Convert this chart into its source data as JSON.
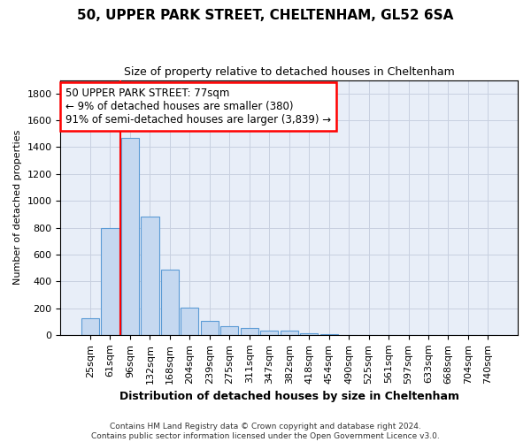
{
  "title": "50, UPPER PARK STREET, CHELTENHAM, GL52 6SA",
  "subtitle": "Size of property relative to detached houses in Cheltenham",
  "xlabel": "Distribution of detached houses by size in Cheltenham",
  "ylabel": "Number of detached properties",
  "categories": [
    "25sqm",
    "61sqm",
    "96sqm",
    "132sqm",
    "168sqm",
    "204sqm",
    "239sqm",
    "275sqm",
    "311sqm",
    "347sqm",
    "382sqm",
    "418sqm",
    "454sqm",
    "490sqm",
    "525sqm",
    "561sqm",
    "597sqm",
    "633sqm",
    "668sqm",
    "704sqm",
    "740sqm"
  ],
  "values": [
    125,
    800,
    1470,
    880,
    490,
    205,
    105,
    65,
    50,
    35,
    30,
    15,
    5,
    2,
    2,
    2,
    2,
    2,
    2,
    2,
    2
  ],
  "bar_color": "#c5d8f0",
  "bar_edge_color": "#5b9bd5",
  "red_line_x": 1.5,
  "annotation_text_line1": "50 UPPER PARK STREET: 77sqm",
  "annotation_text_line2": "← 9% of detached houses are smaller (380)",
  "annotation_text_line3": "91% of semi-detached houses are larger (3,839) →",
  "footer_line1": "Contains HM Land Registry data © Crown copyright and database right 2024.",
  "footer_line2": "Contains public sector information licensed under the Open Government Licence v3.0.",
  "ylim": [
    0,
    1900
  ],
  "yticks": [
    0,
    200,
    400,
    600,
    800,
    1000,
    1200,
    1400,
    1600,
    1800
  ],
  "background_color": "#e8eef8",
  "grid_color": "#c8d0e0",
  "title_fontsize": 11,
  "subtitle_fontsize": 9,
  "xlabel_fontsize": 9,
  "ylabel_fontsize": 8,
  "tick_fontsize": 8,
  "annotation_fontsize": 8.5
}
